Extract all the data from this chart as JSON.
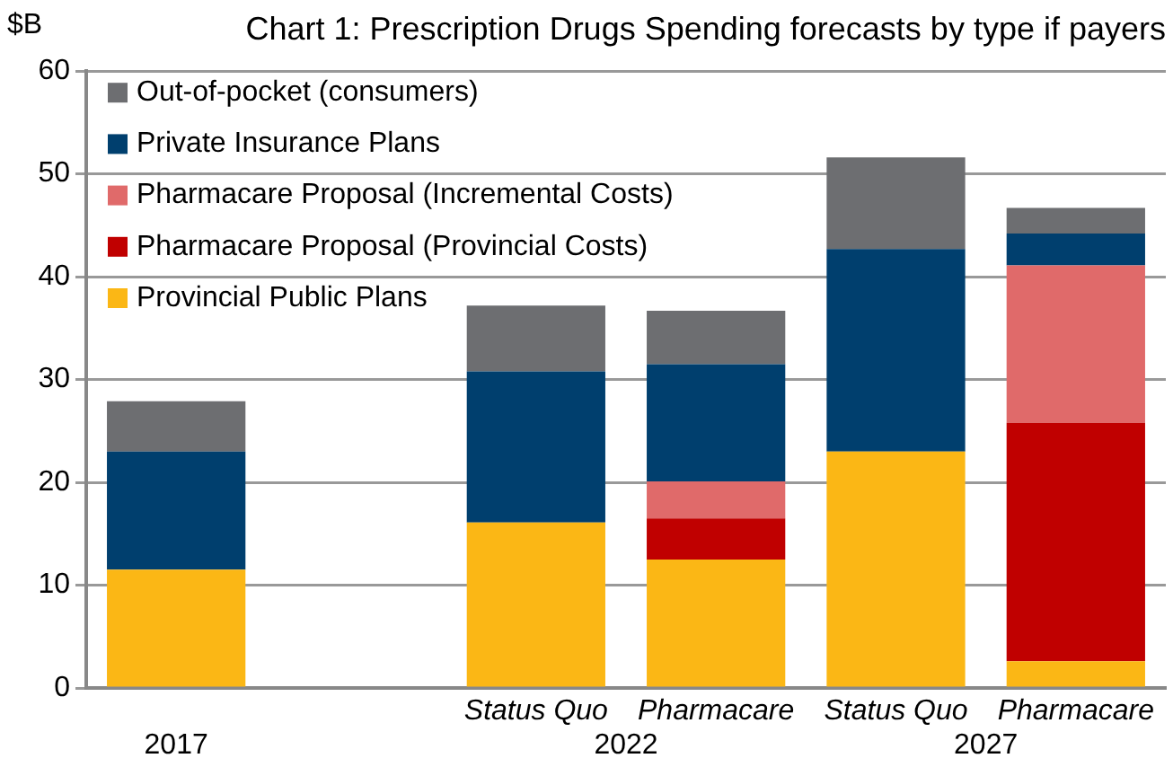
{
  "chart_data": {
    "type": "bar",
    "title": "Chart 1: Prescription Drugs Spending forecasts by type if payers",
    "ylabel": "$B",
    "categories": [
      "2017",
      null,
      "Status Quo",
      "Pharmacare",
      "Status Quo",
      "Pharmacare"
    ],
    "annotations": [
      "2022",
      "2027"
    ],
    "stacked": true,
    "ylim": [
      0,
      60
    ],
    "yticks": [
      0,
      10,
      20,
      30,
      40,
      50,
      60
    ],
    "grid": "y",
    "legend": "top left",
    "series": [
      {
        "name": "Provincial Public Plans",
        "color": "#fbb715",
        "values": [
          11.5,
          null,
          16.1,
          12.5,
          23.0,
          2.6
        ]
      },
      {
        "name": "Pharmacare Proposal (Provincial Costs)",
        "color": "#c00000",
        "values": [
          null,
          null,
          null,
          4.0,
          null,
          23.2
        ]
      },
      {
        "name": "Pharmacare Proposal (Incremental Costs)",
        "color": "#e06a6a",
        "values": [
          null,
          null,
          null,
          3.6,
          null,
          15.3
        ]
      },
      {
        "name": "Private Insurance Plans",
        "color": "#003f6e",
        "values": [
          11.5,
          null,
          14.7,
          11.4,
          19.7,
          3.1
        ]
      },
      {
        "name": "Out-of-pocket (consumers)",
        "color": "#6d6e71",
        "values": [
          4.9,
          null,
          6.4,
          5.2,
          8.9,
          2.5
        ]
      }
    ]
  }
}
